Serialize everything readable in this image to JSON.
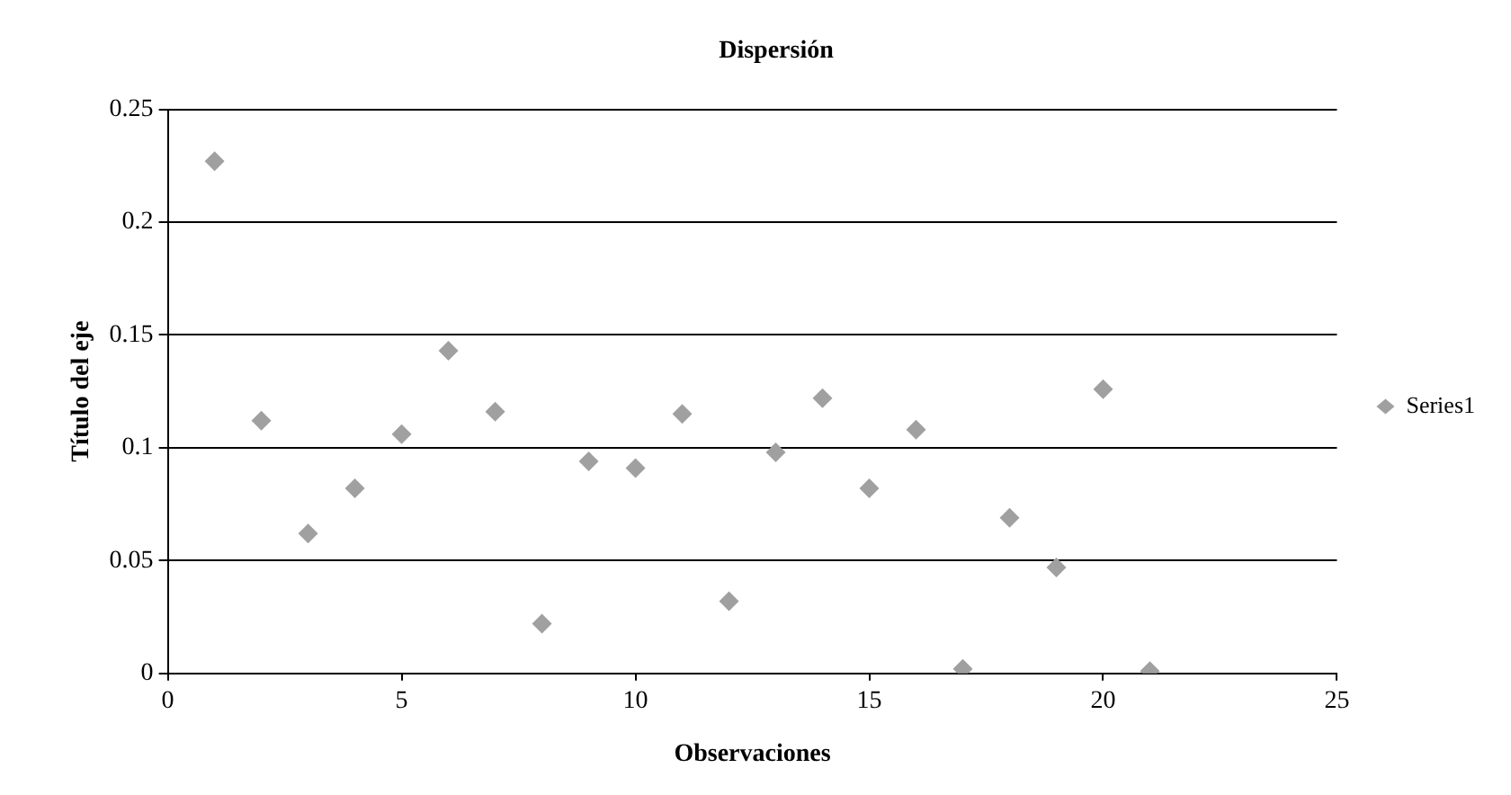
{
  "chart_data": {
    "type": "scatter",
    "title": "Dispersión",
    "xlabel": "Observaciones",
    "ylabel": "Título del eje",
    "x": [
      1,
      2,
      3,
      4,
      5,
      6,
      7,
      8,
      9,
      10,
      11,
      12,
      13,
      14,
      15,
      16,
      17,
      18,
      19,
      20,
      21
    ],
    "series": [
      {
        "name": "Series1",
        "color": "#a0a0a0",
        "values": [
          0.227,
          0.112,
          0.062,
          0.082,
          0.106,
          0.143,
          0.116,
          0.022,
          0.094,
          0.091,
          0.115,
          0.032,
          0.098,
          0.122,
          0.082,
          0.108,
          0.002,
          0.069,
          0.047,
          0.126,
          0.001
        ]
      }
    ],
    "xlim": [
      0,
      25
    ],
    "xticks": [
      0,
      5,
      10,
      15,
      20,
      25
    ],
    "ylim": [
      0,
      0.25
    ],
    "yticks": [
      0,
      0.05,
      0.1,
      0.15,
      0.2,
      0.25
    ],
    "grid": "y",
    "legend": "right",
    "marker": "diamond"
  }
}
